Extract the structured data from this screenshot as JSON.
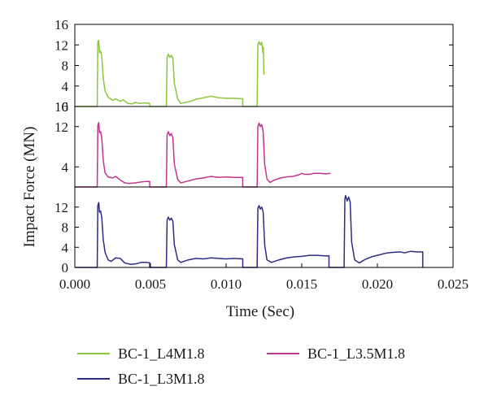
{
  "chart_data": {
    "type": "line",
    "title": "",
    "xlabel": "Time (Sec)",
    "ylabel": "Impact Force (MN)",
    "xlim": [
      0,
      0.025
    ],
    "x_ticks": [
      "0.000",
      "0.005",
      "0.010",
      "0.015",
      "0.020",
      "0.025"
    ],
    "x_tick_values": [
      0,
      0.005,
      0.01,
      0.015,
      0.02,
      0.025
    ],
    "legend_position": "bottom",
    "panels": [
      {
        "series_index": 0,
        "ylim": [
          0,
          16
        ],
        "y_ticks": [
          "0",
          "4",
          "8",
          "12",
          "16"
        ],
        "y_tick_values": [
          0,
          4,
          8,
          12,
          16
        ]
      },
      {
        "series_index": 1,
        "ylim": [
          0,
          16
        ],
        "y_ticks": [
          "4",
          "12",
          "16"
        ],
        "y_tick_values": [
          4,
          12,
          16
        ]
      },
      {
        "series_index": 2,
        "ylim": [
          0,
          16
        ],
        "y_ticks": [
          "0",
          "4",
          "8",
          "12"
        ],
        "y_tick_values": [
          0,
          4,
          8,
          12
        ]
      }
    ],
    "series": [
      {
        "name": "BC-1_L4M1.8",
        "color": "#8cc63e",
        "points": [
          [
            0,
            0
          ],
          [
            0.00148,
            0
          ],
          [
            0.00152,
            12.5
          ],
          [
            0.00158,
            12.9
          ],
          [
            0.00163,
            10.5
          ],
          [
            0.0017,
            10.8
          ],
          [
            0.00178,
            9.8
          ],
          [
            0.00188,
            5.5
          ],
          [
            0.002,
            3.0
          ],
          [
            0.0022,
            1.8
          ],
          [
            0.0025,
            1.2
          ],
          [
            0.0027,
            1.5
          ],
          [
            0.003,
            1.0
          ],
          [
            0.0032,
            1.3
          ],
          [
            0.0035,
            0.6
          ],
          [
            0.0038,
            0.5
          ],
          [
            0.004,
            0.8
          ],
          [
            0.0043,
            0.6
          ],
          [
            0.0046,
            0.7
          ],
          [
            0.00495,
            0.6
          ],
          [
            0.00495,
            0
          ],
          [
            0.00605,
            0
          ],
          [
            0.0061,
            9.5
          ],
          [
            0.00618,
            10.2
          ],
          [
            0.00628,
            9.6
          ],
          [
            0.00638,
            10.0
          ],
          [
            0.00648,
            9.4
          ],
          [
            0.00658,
            4.5
          ],
          [
            0.0068,
            1.5
          ],
          [
            0.007,
            0.6
          ],
          [
            0.0075,
            0.9
          ],
          [
            0.008,
            1.4
          ],
          [
            0.0085,
            1.7
          ],
          [
            0.009,
            2.0
          ],
          [
            0.0095,
            1.7
          ],
          [
            0.01,
            1.6
          ],
          [
            0.0105,
            1.6
          ],
          [
            0.0111,
            1.5
          ],
          [
            0.0111,
            0
          ],
          [
            0.01205,
            0
          ],
          [
            0.0121,
            12.0
          ],
          [
            0.01218,
            12.6
          ],
          [
            0.01226,
            12.0
          ],
          [
            0.01236,
            12.5
          ],
          [
            0.01243,
            10.5
          ],
          [
            0.01246,
            11.5
          ],
          [
            0.0125,
            6.2
          ]
        ]
      },
      {
        "name": "BC-1_L3.5M1.8",
        "color": "#c0358f",
        "points": [
          [
            0,
            0
          ],
          [
            0.00148,
            0
          ],
          [
            0.00152,
            12.2
          ],
          [
            0.00158,
            12.8
          ],
          [
            0.00163,
            10.8
          ],
          [
            0.0017,
            11.0
          ],
          [
            0.00178,
            9.8
          ],
          [
            0.00188,
            5.2
          ],
          [
            0.002,
            2.8
          ],
          [
            0.0022,
            2.0
          ],
          [
            0.0025,
            1.8
          ],
          [
            0.0027,
            2.1
          ],
          [
            0.003,
            1.4
          ],
          [
            0.0033,
            0.8
          ],
          [
            0.0036,
            0.7
          ],
          [
            0.004,
            0.8
          ],
          [
            0.0044,
            1.0
          ],
          [
            0.00475,
            1.1
          ],
          [
            0.00495,
            1.1
          ],
          [
            0.00495,
            0
          ],
          [
            0.00605,
            0
          ],
          [
            0.0061,
            10.3
          ],
          [
            0.00618,
            11.0
          ],
          [
            0.00628,
            10.2
          ],
          [
            0.00638,
            10.6
          ],
          [
            0.00648,
            9.8
          ],
          [
            0.00658,
            4.5
          ],
          [
            0.0068,
            1.5
          ],
          [
            0.007,
            0.8
          ],
          [
            0.0075,
            1.2
          ],
          [
            0.008,
            1.6
          ],
          [
            0.0085,
            1.8
          ],
          [
            0.009,
            2.1
          ],
          [
            0.0095,
            1.9
          ],
          [
            0.01,
            2.0
          ],
          [
            0.0105,
            1.9
          ],
          [
            0.0111,
            1.9
          ],
          [
            0.0111,
            0
          ],
          [
            0.01205,
            0
          ],
          [
            0.0121,
            12.0
          ],
          [
            0.01218,
            12.7
          ],
          [
            0.01226,
            12.0
          ],
          [
            0.01236,
            12.4
          ],
          [
            0.01245,
            11.0
          ],
          [
            0.01255,
            4.5
          ],
          [
            0.0127,
            1.6
          ],
          [
            0.0129,
            0.9
          ],
          [
            0.0132,
            1.4
          ],
          [
            0.0136,
            1.8
          ],
          [
            0.014,
            2.0
          ],
          [
            0.0144,
            2.1
          ],
          [
            0.0148,
            2.4
          ],
          [
            0.015,
            2.7
          ],
          [
            0.0152,
            2.5
          ],
          [
            0.0155,
            2.5
          ],
          [
            0.0158,
            2.7
          ],
          [
            0.0162,
            2.7
          ],
          [
            0.0166,
            2.6
          ],
          [
            0.0169,
            2.7
          ]
        ]
      },
      {
        "name": "BC-1_L3M1.8",
        "color": "#2e2b87",
        "points": [
          [
            0,
            0
          ],
          [
            0.00148,
            0
          ],
          [
            0.00152,
            12.3
          ],
          [
            0.00158,
            12.9
          ],
          [
            0.00163,
            11.0
          ],
          [
            0.0017,
            11.2
          ],
          [
            0.00178,
            10.0
          ],
          [
            0.00188,
            5.5
          ],
          [
            0.002,
            3.0
          ],
          [
            0.0022,
            1.5
          ],
          [
            0.0024,
            1.2
          ],
          [
            0.0027,
            1.9
          ],
          [
            0.003,
            1.8
          ],
          [
            0.0033,
            0.9
          ],
          [
            0.0037,
            0.6
          ],
          [
            0.004,
            0.7
          ],
          [
            0.0044,
            1.0
          ],
          [
            0.0047,
            1.0
          ],
          [
            0.00495,
            0.9
          ],
          [
            0.00495,
            0
          ],
          [
            0.00605,
            0
          ],
          [
            0.0061,
            9.4
          ],
          [
            0.00618,
            10.0
          ],
          [
            0.00628,
            9.4
          ],
          [
            0.00638,
            9.8
          ],
          [
            0.00648,
            9.2
          ],
          [
            0.00658,
            4.5
          ],
          [
            0.0068,
            1.5
          ],
          [
            0.007,
            1.0
          ],
          [
            0.0075,
            1.5
          ],
          [
            0.008,
            1.8
          ],
          [
            0.0085,
            1.7
          ],
          [
            0.009,
            1.9
          ],
          [
            0.0095,
            1.8
          ],
          [
            0.01,
            1.7
          ],
          [
            0.0105,
            1.8
          ],
          [
            0.0111,
            1.7
          ],
          [
            0.0111,
            0
          ],
          [
            0.01205,
            0
          ],
          [
            0.0121,
            11.8
          ],
          [
            0.01218,
            12.3
          ],
          [
            0.01226,
            11.6
          ],
          [
            0.01236,
            12.0
          ],
          [
            0.01245,
            11.0
          ],
          [
            0.01255,
            4.5
          ],
          [
            0.0127,
            1.5
          ],
          [
            0.013,
            1.0
          ],
          [
            0.0135,
            1.5
          ],
          [
            0.014,
            1.9
          ],
          [
            0.0145,
            2.1
          ],
          [
            0.015,
            2.2
          ],
          [
            0.0155,
            2.4
          ],
          [
            0.016,
            2.4
          ],
          [
            0.0165,
            2.3
          ],
          [
            0.0168,
            2.3
          ],
          [
            0.0168,
            0
          ],
          [
            0.0178,
            0
          ],
          [
            0.01785,
            13.6
          ],
          [
            0.0179,
            14.3
          ],
          [
            0.018,
            13.2
          ],
          [
            0.0181,
            14.0
          ],
          [
            0.0182,
            13.0
          ],
          [
            0.0183,
            5.0
          ],
          [
            0.0185,
            1.5
          ],
          [
            0.0188,
            0.9
          ],
          [
            0.0192,
            1.6
          ],
          [
            0.0196,
            2.1
          ],
          [
            0.02,
            2.4
          ],
          [
            0.0205,
            2.8
          ],
          [
            0.021,
            3.0
          ],
          [
            0.0215,
            3.1
          ],
          [
            0.0218,
            2.9
          ],
          [
            0.0222,
            3.2
          ],
          [
            0.0226,
            3.1
          ],
          [
            0.023,
            3.1
          ],
          [
            0.023,
            0
          ]
        ]
      }
    ]
  }
}
